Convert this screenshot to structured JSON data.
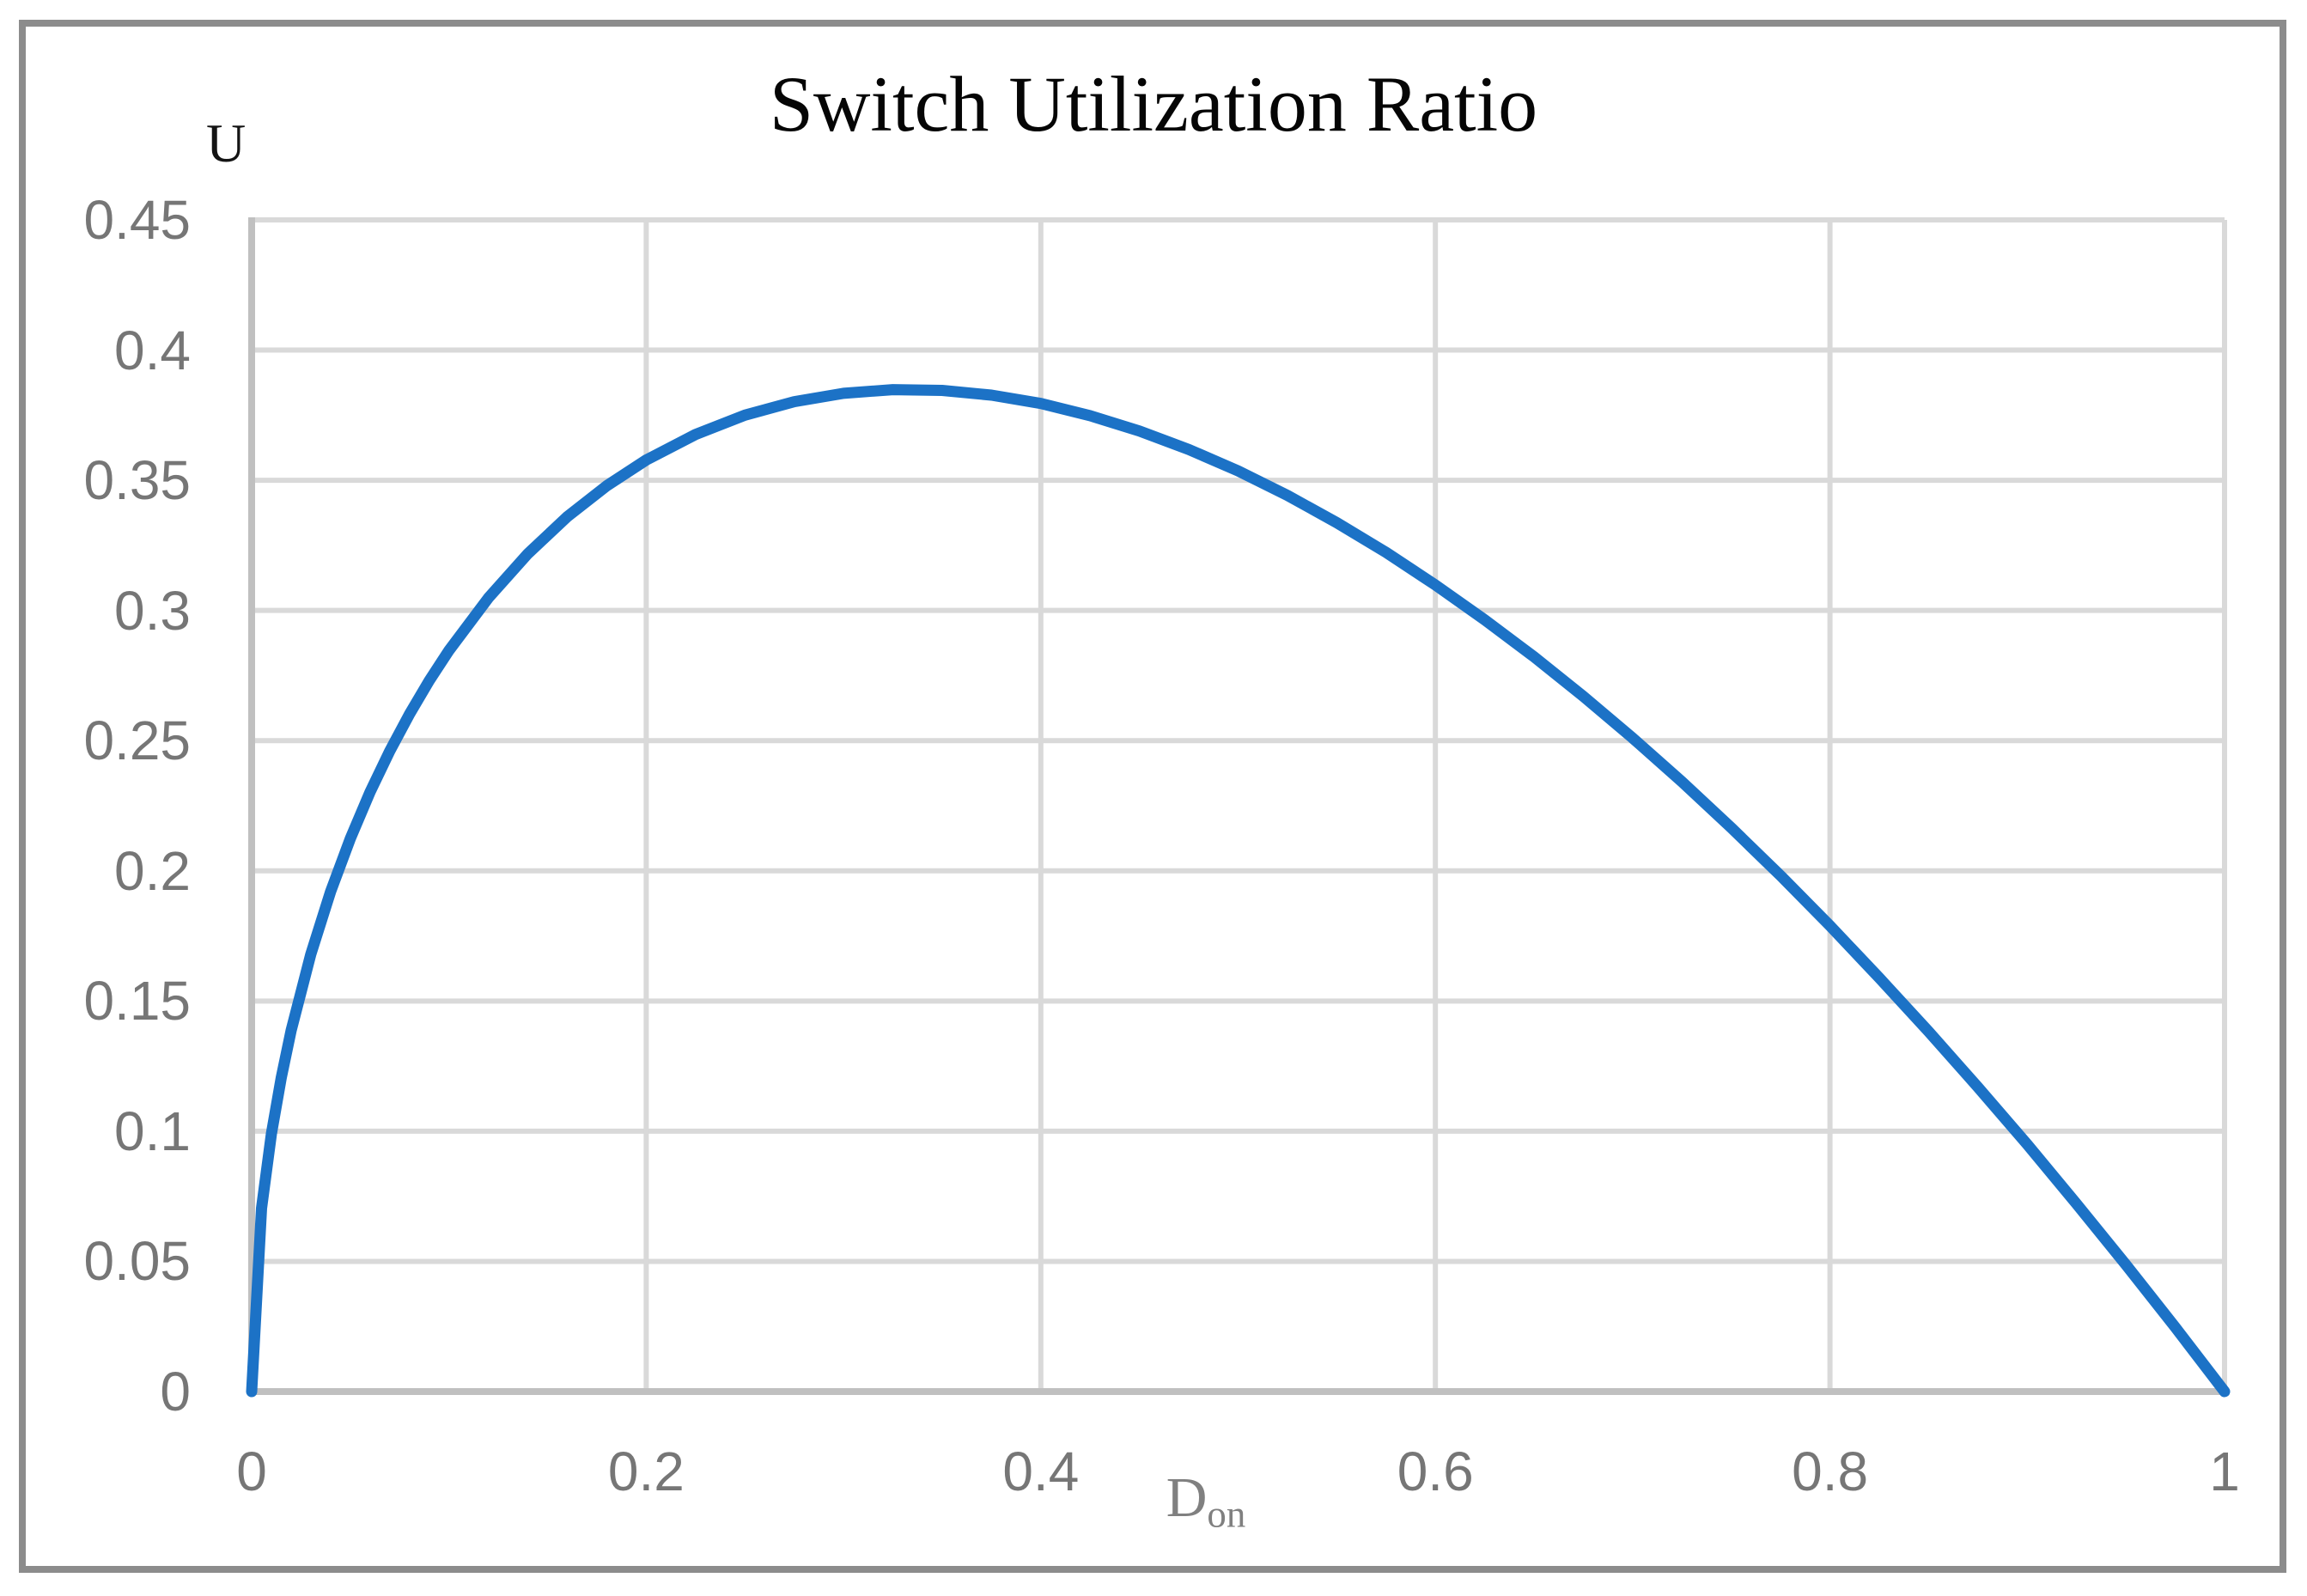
{
  "chart_data": {
    "type": "line",
    "title": "Switch Utilization Ratio",
    "ylabel": "U",
    "xlabel_main": "D",
    "xlabel_sub": "on",
    "xlim": [
      0,
      1
    ],
    "ylim": [
      0,
      0.45
    ],
    "grid": true,
    "legend_position": "none",
    "x_tick_values": [
      0,
      0.2,
      0.4,
      0.6,
      0.8,
      1
    ],
    "x_tick_labels": [
      "0",
      "0.2",
      "0.4",
      "0.6",
      "0.8",
      "1"
    ],
    "y_tick_values": [
      0,
      0.05,
      0.1,
      0.15,
      0.2,
      0.25,
      0.3,
      0.35,
      0.4,
      0.45
    ],
    "y_tick_labels": [
      "0",
      "0.05",
      "0.1",
      "0.15",
      "0.2",
      "0.25",
      "0.3",
      "0.35",
      "0.4",
      "0.45"
    ],
    "series": [
      {
        "name": "switch-utilization-ratio",
        "x": [
          0,
          0.005,
          0.01,
          0.015,
          0.02,
          0.03,
          0.04,
          0.05,
          0.06,
          0.07,
          0.08,
          0.09,
          0.1,
          0.12,
          0.14,
          0.16,
          0.18,
          0.2,
          0.225,
          0.25,
          0.275,
          0.3,
          0.325,
          0.35,
          0.375,
          0.4,
          0.425,
          0.45,
          0.475,
          0.5,
          0.525,
          0.55,
          0.575,
          0.6,
          0.625,
          0.65,
          0.675,
          0.7,
          0.725,
          0.75,
          0.775,
          0.8,
          0.825,
          0.85,
          0.875,
          0.9,
          0.925,
          0.95,
          0.975,
          1
        ],
        "y": [
          0,
          0.0704,
          0.099,
          0.1206,
          0.1386,
          0.168,
          0.192,
          0.2124,
          0.2302,
          0.246,
          0.2602,
          0.273,
          0.2846,
          0.3048,
          0.3218,
          0.336,
          0.3479,
          0.3578,
          0.3676,
          0.375,
          0.3802,
          0.3834,
          0.3848,
          0.3845,
          0.3827,
          0.3795,
          0.3748,
          0.3689,
          0.3618,
          0.3536,
          0.3442,
          0.3337,
          0.3223,
          0.3098,
          0.2964,
          0.2822,
          0.267,
          0.251,
          0.2342,
          0.2165,
          0.1981,
          0.1789,
          0.1589,
          0.1383,
          0.1169,
          0.0949,
          0.0721,
          0.0487,
          0.0247,
          0
        ]
      }
    ],
    "peak_value": 0.385,
    "peak_x": 0.33
  },
  "colors": {
    "curve": "#1C72C6",
    "gridline": "#D9D9D9",
    "axis_line": "#C0C0C0",
    "frame_border": "#8C8C8C",
    "tick_text": "#767676",
    "axis_title_text": "#808080",
    "title_text": "#050505"
  }
}
